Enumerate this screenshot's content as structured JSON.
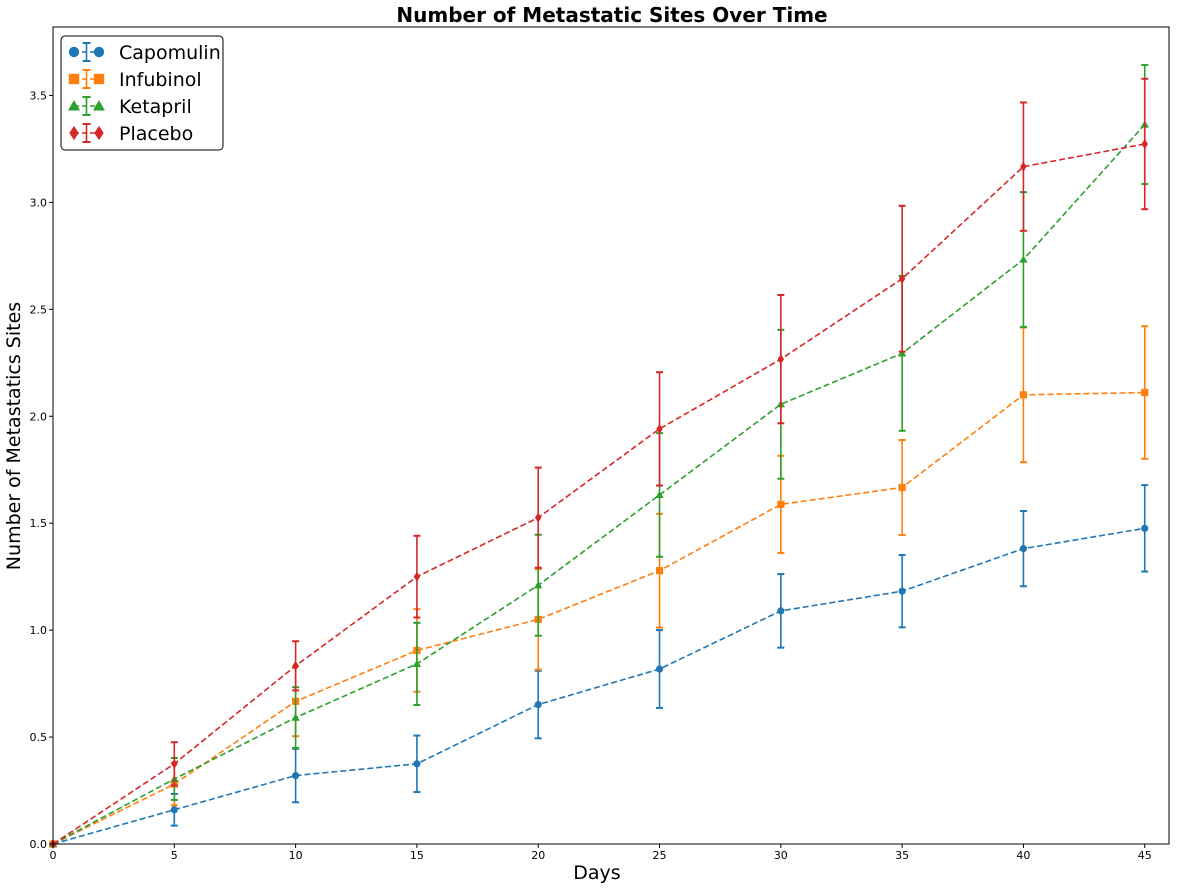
{
  "chart_data": {
    "type": "line",
    "title": "Number of Metastatic Sites Over Time",
    "xlabel": "Days",
    "ylabel": "Number of Metastatics Sites",
    "xlim": [
      0,
      46
    ],
    "ylim": [
      0,
      3.82
    ],
    "x": [
      0,
      5,
      10,
      15,
      20,
      25,
      30,
      35,
      40,
      45
    ],
    "x_ticks": [
      0,
      5,
      10,
      15,
      20,
      25,
      30,
      35,
      40,
      45
    ],
    "y_ticks": [
      0.0,
      0.5,
      1.0,
      1.5,
      2.0,
      2.5,
      3.0,
      3.5
    ],
    "y_tick_labels": [
      "0.0",
      "0.5",
      "1.0",
      "1.5",
      "2.0",
      "2.5",
      "3.0",
      "3.5"
    ],
    "grid": false,
    "legend_position": "top-left",
    "error_bars": true,
    "line_style": "dashed",
    "series": [
      {
        "name": "Capomulin",
        "color": "#1f77b4",
        "marker": "circle",
        "values": [
          0.0,
          0.16,
          0.32,
          0.375,
          0.652,
          0.818,
          1.09,
          1.182,
          1.381,
          1.476
        ],
        "errors": [
          0.0,
          0.074,
          0.125,
          0.132,
          0.158,
          0.182,
          0.172,
          0.169,
          0.176,
          0.202
        ]
      },
      {
        "name": "Infubinol",
        "color": "#ff7f0e",
        "marker": "square",
        "values": [
          0.0,
          0.28,
          0.667,
          0.905,
          1.05,
          1.278,
          1.588,
          1.667,
          2.1,
          2.111
        ],
        "errors": [
          0.0,
          0.099,
          0.163,
          0.193,
          0.235,
          0.266,
          0.227,
          0.222,
          0.315,
          0.31
        ]
      },
      {
        "name": "Ketapril",
        "color": "#2ca02c",
        "marker": "triangle",
        "values": [
          0.0,
          0.304,
          0.591,
          0.842,
          1.21,
          1.632,
          2.056,
          2.294,
          2.733,
          3.364
        ],
        "errors": [
          0.0,
          0.098,
          0.142,
          0.192,
          0.236,
          0.289,
          0.348,
          0.362,
          0.315,
          0.278
        ]
      },
      {
        "name": "Placebo",
        "color": "#d62728",
        "marker": "diamond",
        "values": [
          0.0,
          0.375,
          0.833,
          1.25,
          1.526,
          1.941,
          2.267,
          2.643,
          3.167,
          3.273
        ],
        "errors": [
          0.0,
          0.101,
          0.115,
          0.191,
          0.234,
          0.265,
          0.3,
          0.341,
          0.3,
          0.305
        ]
      }
    ]
  }
}
